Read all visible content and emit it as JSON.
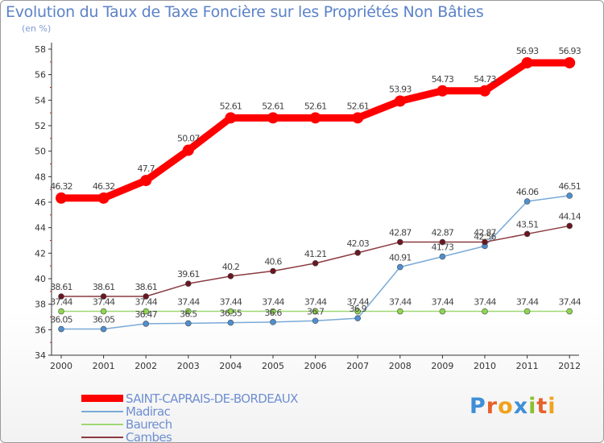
{
  "chart": {
    "title": "Evolution du Taux de Taxe Foncière sur les Propriétés Non Bâties",
    "unit_label": "(en %)"
  },
  "logo": {
    "letters": [
      "P",
      "r",
      "o",
      "x",
      "i",
      "t",
      "i"
    ],
    "colors": [
      "#3f8fd8",
      "#e7602c",
      "#f0a21c",
      "#3f8fd8",
      "#8cbf2f",
      "#e7602c",
      "#f0a21c"
    ]
  },
  "chart_data": {
    "type": "line",
    "x": [
      "2000",
      "2001",
      "2002",
      "2003",
      "2004",
      "2005",
      "2006",
      "2007",
      "2008",
      "2009",
      "2010",
      "2011",
      "2012"
    ],
    "ylim": [
      34,
      58
    ],
    "yticks": [
      34,
      36,
      38,
      40,
      42,
      44,
      46,
      48,
      50,
      52,
      54,
      56,
      58
    ],
    "grid": false,
    "legend_position": "bottom-left",
    "series": [
      {
        "name": "SAINT-CAPRAIS-DE-BORDEAUX",
        "color": "#ff0000",
        "line_color": "#ff0000",
        "width": 9,
        "marker": 7,
        "values": [
          46.32,
          46.32,
          47.7,
          50.07,
          52.61,
          52.61,
          52.61,
          52.61,
          53.93,
          54.73,
          54.73,
          56.93,
          56.93
        ],
        "labels": [
          "46.32",
          "46.32",
          "47.7",
          "50.07",
          "52.61",
          "52.61",
          "52.61",
          "52.61",
          "53.93",
          "54.73",
          "54.73",
          "56.93",
          "56.93"
        ]
      },
      {
        "name": "Madirac",
        "color": "#4f8fd0",
        "line_color": "#7aaad8",
        "width": 1.5,
        "marker": 3.5,
        "values": [
          36.05,
          36.05,
          36.47,
          36.5,
          36.55,
          36.6,
          36.7,
          36.9,
          40.91,
          41.73,
          42.56,
          46.06,
          46.51
        ],
        "labels": [
          "36.05",
          "36.05",
          "36.47",
          "36.5",
          "36.55",
          "36.6",
          "36.7",
          "36.9",
          "40.91",
          "41.73",
          "42.56",
          "46.06",
          "46.51"
        ]
      },
      {
        "name": "Baurech",
        "color": "#8fd650",
        "line_color": "#9ed874",
        "width": 1.5,
        "marker": 3.5,
        "values": [
          37.44,
          37.44,
          37.44,
          37.44,
          37.44,
          37.44,
          37.44,
          37.44,
          37.44,
          37.44,
          37.44,
          37.44,
          37.44
        ],
        "labels": [
          "37.44",
          "37.44",
          "37.44",
          "37.44",
          "37.44",
          "37.44",
          "37.44",
          "37.44",
          "37.44",
          "37.44",
          "37.44",
          "37.44",
          "37.44"
        ]
      },
      {
        "name": "Cambes",
        "color": "#6b1620",
        "line_color": "#8a3a40",
        "width": 1.5,
        "marker": 3.5,
        "values": [
          38.61,
          38.61,
          38.61,
          39.61,
          40.2,
          40.6,
          41.21,
          42.03,
          42.87,
          42.87,
          42.87,
          43.51,
          44.14
        ],
        "labels": [
          "38.61",
          "38.61",
          "38.61",
          "39.61",
          "40.2",
          "40.6",
          "41.21",
          "42.03",
          "42.87",
          "42.87",
          "42.87",
          "43.51",
          "44.14"
        ]
      }
    ]
  }
}
